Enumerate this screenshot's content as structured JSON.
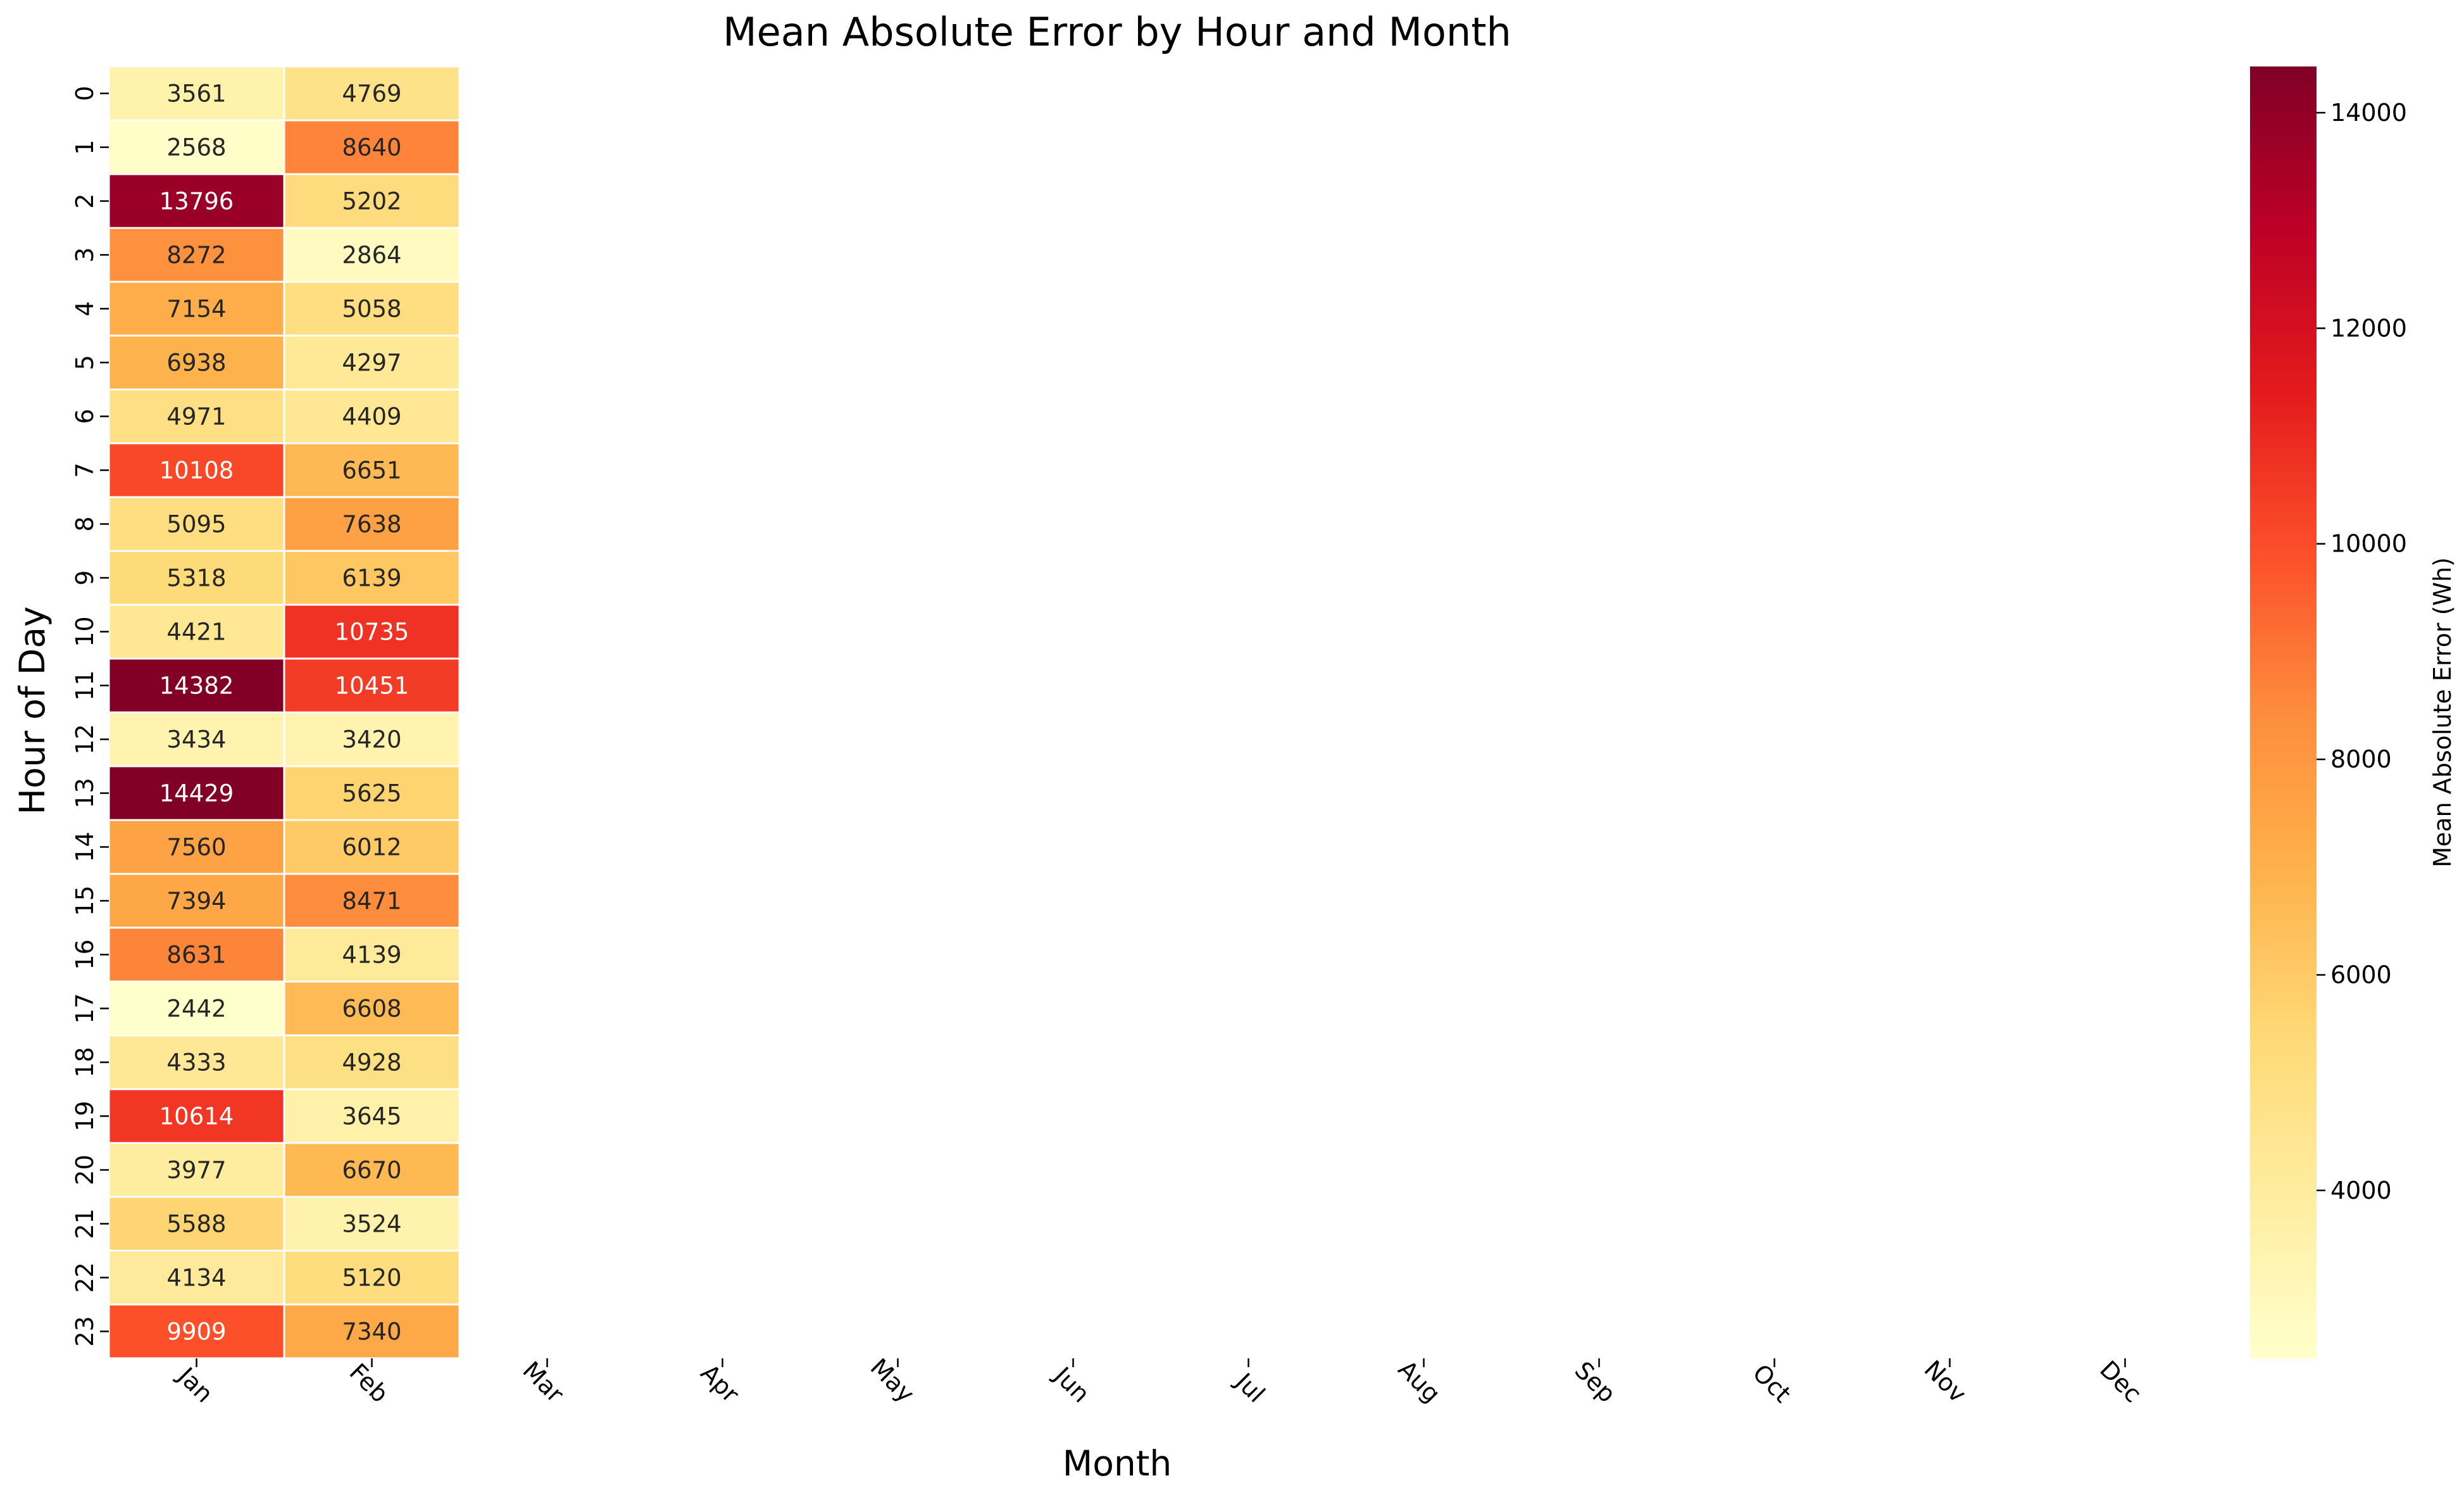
{
  "chart_data": {
    "type": "heatmap",
    "title": "Mean Absolute Error by Hour and Month",
    "xlabel": "Month",
    "ylabel": "Hour of Day",
    "x_categories": [
      "Jan",
      "Feb",
      "Mar",
      "Apr",
      "May",
      "Jun",
      "Jul",
      "Aug",
      "Sep",
      "Oct",
      "Nov",
      "Dec"
    ],
    "y_categories": [
      "0",
      "1",
      "2",
      "3",
      "4",
      "5",
      "6",
      "7",
      "8",
      "9",
      "10",
      "11",
      "12",
      "13",
      "14",
      "15",
      "16",
      "17",
      "18",
      "19",
      "20",
      "21",
      "22",
      "23"
    ],
    "series": [
      {
        "month": "Jan",
        "values": [
          3561,
          2568,
          13796,
          8272,
          7154,
          6938,
          4971,
          10108,
          5095,
          5318,
          4421,
          14382,
          3434,
          14429,
          7560,
          7394,
          8631,
          2442,
          4333,
          10614,
          3977,
          5588,
          4134,
          9909
        ]
      },
      {
        "month": "Feb",
        "values": [
          4769,
          8640,
          5202,
          2864,
          5058,
          4297,
          4409,
          6651,
          7638,
          6139,
          10735,
          10451,
          3420,
          5625,
          6012,
          8471,
          4139,
          6608,
          4928,
          3645,
          6670,
          3524,
          5120,
          7340
        ]
      }
    ],
    "colorbar": {
      "label": "Mean Absolute Error (Wh)",
      "min": 2442,
      "max": 14429,
      "ticks": [
        4000,
        6000,
        8000,
        10000,
        12000,
        14000
      ],
      "colormap": "YlOrRd",
      "stops": [
        "#ffffcc",
        "#ffeda0",
        "#fed976",
        "#feb24c",
        "#fd8d3c",
        "#fc4e2a",
        "#e31a1c",
        "#bd0026",
        "#800026"
      ]
    },
    "cell_border_color": "#ffffff",
    "grid": false
  }
}
